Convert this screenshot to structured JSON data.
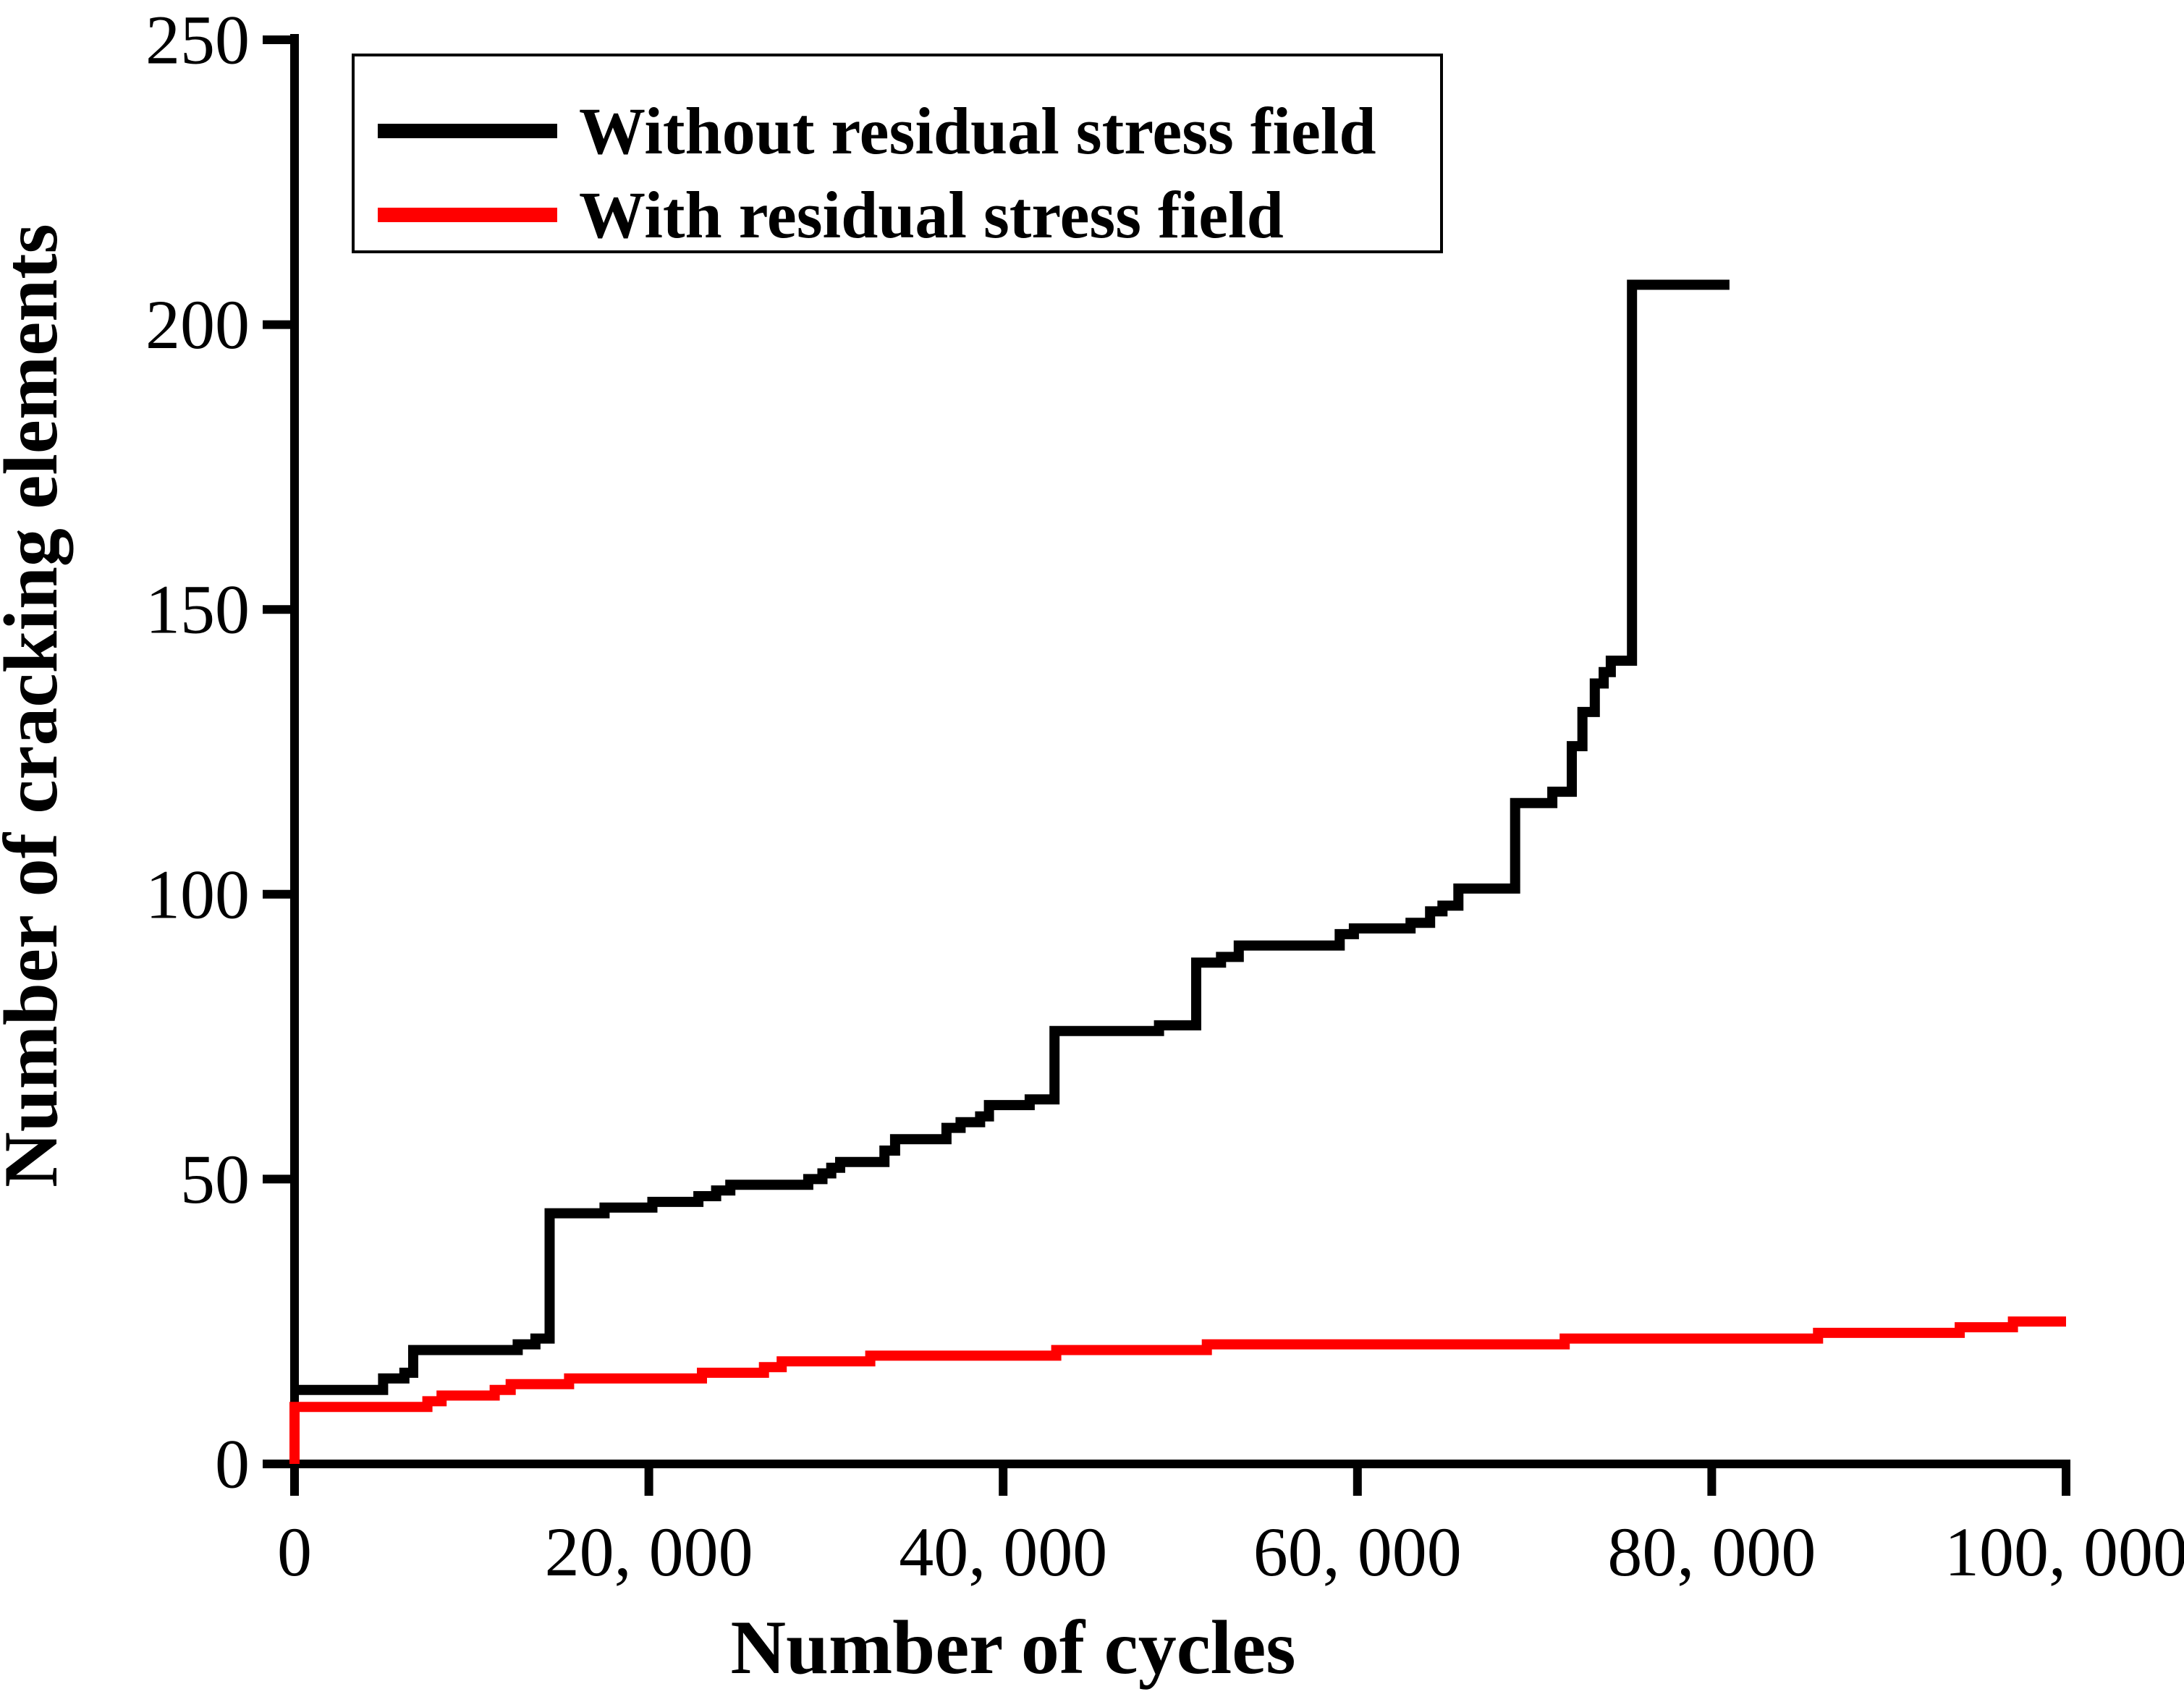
{
  "chart_data": {
    "type": "line",
    "line_style": "step-after",
    "title": "",
    "xlabel": "Number of cycles",
    "ylabel": "Number of cracking elements",
    "xlim": [
      0,
      100000
    ],
    "ylim": [
      0,
      250
    ],
    "grid": false,
    "legend_position": "top-left-inside",
    "x_ticks": [
      0,
      20000,
      40000,
      60000,
      80000,
      100000
    ],
    "x_tick_labels": [
      "0",
      "20, 000",
      "40, 000",
      "60, 000",
      "80, 000",
      "100, 000"
    ],
    "y_ticks": [
      0,
      50,
      100,
      150,
      200,
      250
    ],
    "y_tick_labels": [
      "0",
      "50",
      "100",
      "150",
      "200",
      "250"
    ],
    "series": [
      {
        "name": "Without residual stress field",
        "color": "#000000",
        "stroke_width": 14,
        "points": [
          [
            0,
            13
          ],
          [
            5000,
            15
          ],
          [
            6200,
            16
          ],
          [
            6700,
            20
          ],
          [
            12600,
            21
          ],
          [
            13600,
            22
          ],
          [
            14400,
            44
          ],
          [
            17500,
            45
          ],
          [
            20200,
            46
          ],
          [
            22800,
            47
          ],
          [
            23800,
            48
          ],
          [
            24600,
            49
          ],
          [
            29000,
            50
          ],
          [
            29800,
            51
          ],
          [
            30300,
            52
          ],
          [
            30800,
            53
          ],
          [
            33300,
            55
          ],
          [
            33900,
            57
          ],
          [
            36800,
            59
          ],
          [
            37600,
            60
          ],
          [
            38700,
            61
          ],
          [
            39200,
            63
          ],
          [
            41500,
            64
          ],
          [
            42900,
            76
          ],
          [
            48800,
            77
          ],
          [
            50900,
            88
          ],
          [
            52300,
            89
          ],
          [
            53300,
            91
          ],
          [
            59000,
            93
          ],
          [
            59800,
            94
          ],
          [
            63000,
            95
          ],
          [
            64100,
            97
          ],
          [
            64800,
            98
          ],
          [
            65700,
            101
          ],
          [
            68900,
            116
          ],
          [
            71000,
            118
          ],
          [
            72100,
            126
          ],
          [
            72700,
            132
          ],
          [
            73400,
            137
          ],
          [
            73900,
            139
          ],
          [
            74300,
            141
          ],
          [
            75500,
            207
          ],
          [
            81000,
            207
          ]
        ]
      },
      {
        "name": "With residual stress field",
        "color": "#FF0000",
        "stroke_width": 14,
        "points": [
          [
            0,
            0
          ],
          [
            0,
            10
          ],
          [
            7500,
            11
          ],
          [
            8300,
            12
          ],
          [
            11300,
            13
          ],
          [
            12200,
            14
          ],
          [
            15500,
            15
          ],
          [
            23000,
            16
          ],
          [
            26500,
            17
          ],
          [
            27500,
            18
          ],
          [
            32500,
            19
          ],
          [
            43000,
            20
          ],
          [
            51500,
            21
          ],
          [
            71700,
            22
          ],
          [
            86000,
            23
          ],
          [
            94000,
            24
          ],
          [
            97000,
            25
          ],
          [
            100000,
            25
          ]
        ]
      }
    ]
  },
  "legend": {
    "items": [
      {
        "label": "Without residual stress field",
        "color": "#000000"
      },
      {
        "label": "With residual stress field",
        "color": "#FF0000"
      }
    ]
  },
  "colors": {
    "background": "#FFFFFF",
    "axis": "#000000"
  }
}
